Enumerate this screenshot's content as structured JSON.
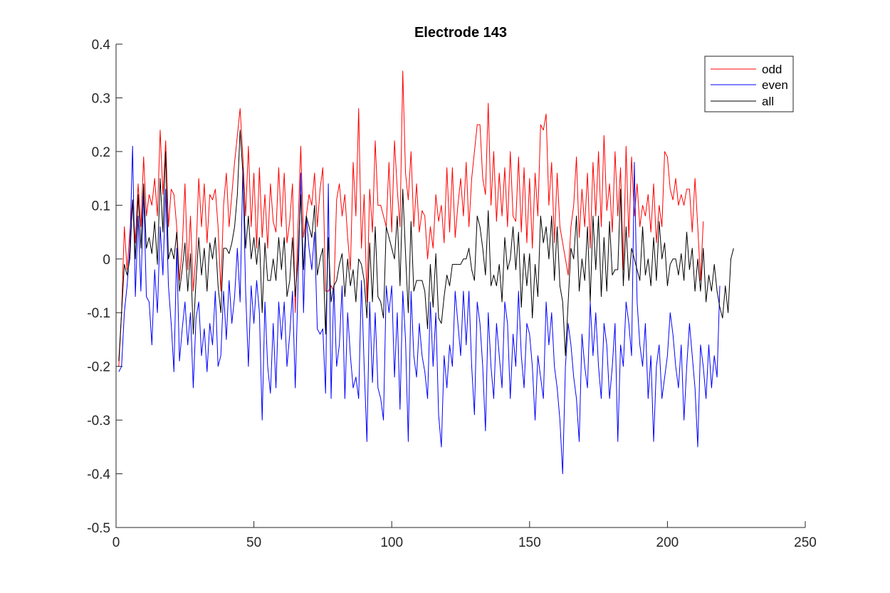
{
  "chart_data": {
    "type": "line",
    "title": "Electrode 143",
    "xlabel": "",
    "ylabel": "",
    "xlim": [
      0,
      250
    ],
    "ylim": [
      -0.5,
      0.4
    ],
    "xticks": [
      0,
      50,
      100,
      150,
      200,
      250
    ],
    "yticks": [
      -0.5,
      -0.4,
      -0.3,
      -0.2,
      -0.1,
      0,
      0.1,
      0.2,
      0.3,
      0.4
    ],
    "xtick_labels": [
      "0",
      "50",
      "100",
      "150",
      "200",
      "250"
    ],
    "ytick_labels": [
      "-0.5",
      "-0.4",
      "-0.3",
      "-0.2",
      "-0.1",
      "0",
      "0.1",
      "0.2",
      "0.3",
      "0.4"
    ],
    "grid": false,
    "legend_position": "top-right",
    "x_start": 1,
    "x_step": 1,
    "series": [
      {
        "name": "odd",
        "color": "#ff0000",
        "values": [
          -0.2,
          -0.1,
          0.06,
          -0.02,
          0.05,
          0.11,
          0.03,
          0.14,
          0.06,
          0.19,
          0.08,
          0.12,
          0.1,
          0.15,
          0.08,
          0.24,
          0.12,
          0.22,
          0.06,
          0.13,
          0.12,
          0.06,
          -0.04,
          0.02,
          0.14,
          -0.02,
          0.08,
          -0.06,
          0.01,
          0.15,
          0.06,
          0.14,
          0.03,
          0.12,
          0.11,
          0.13,
          0.06,
          -0.06,
          0.1,
          0.16,
          0.06,
          0.12,
          0.18,
          0.23,
          0.28,
          0.19,
          0.08,
          0.21,
          0.06,
          0.16,
          0.02,
          0.17,
          0.04,
          0.12,
          0.02,
          0.14,
          0.07,
          0.05,
          0.17,
          0.06,
          0.16,
          0.03,
          0.07,
          0.14,
          -0.1,
          0.06,
          0.21,
          0.04,
          0.08,
          0.12,
          0.1,
          0.16,
          0.06,
          0.13,
          0.17,
          -0.06,
          -0.06,
          -0.05,
          -0.06,
          0.11,
          0.14,
          0.08,
          0.12,
          0.04,
          -0.02,
          0.18,
          0.08,
          0.28,
          0.02,
          0.12,
          -0.08,
          0.13,
          0.05,
          0.22,
          0.1,
          0.1,
          0.08,
          0.06,
          0.18,
          0.05,
          0.22,
          0.13,
          0.06,
          0.35,
          0.16,
          0.11,
          0.2,
          0.06,
          0.14,
          0.05,
          0.09,
          0.08,
          0.0,
          0.06,
          0.02,
          0.12,
          0.07,
          0.1,
          0.03,
          0.17,
          0.05,
          0.17,
          0.04,
          0.1,
          0.15,
          0.08,
          0.18,
          0.06,
          0.15,
          0.2,
          0.25,
          0.25,
          0.15,
          0.12,
          0.29,
          0.1,
          0.2,
          0.07,
          0.16,
          0.08,
          0.17,
          0.06,
          0.2,
          0.08,
          0.07,
          0.19,
          0.05,
          0.17,
          0.03,
          0.15,
          0.02,
          0.16,
          0.08,
          0.25,
          0.24,
          0.27,
          0.1,
          0.18,
          0.03,
          0.16,
          0.06,
          0.03,
          0.0,
          -0.03,
          0.06,
          0.1,
          0.19,
          0.04,
          0.13,
          0.06,
          0.16,
          0.02,
          0.18,
          0.08,
          0.2,
          0.06,
          0.23,
          0.09,
          0.14,
          0.05,
          0.2,
          0.08,
          0.17,
          -0.02,
          0.21,
          0.04,
          0.19,
          0.08,
          0.14,
          0.06,
          0.1,
          0.08,
          0.12,
          0.05,
          0.14,
          0.03,
          0.1,
          0.06,
          0.2,
          0.19,
          0.13,
          0.11,
          0.15,
          0.1,
          0.12,
          0.1,
          0.13,
          0.13,
          0.05,
          0.15,
          0.06,
          -0.04,
          0.07
        ]
      },
      {
        "name": "even",
        "color": "#0000ff",
        "values": [
          -0.21,
          -0.2,
          -0.1,
          -0.05,
          0.02,
          0.21,
          -0.07,
          0.08,
          -0.06,
          0.13,
          -0.07,
          -0.08,
          -0.16,
          -0.02,
          -0.1,
          0.06,
          -0.03,
          0.13,
          -0.05,
          -0.12,
          -0.21,
          0.02,
          -0.19,
          -0.13,
          -0.08,
          -0.16,
          -0.1,
          -0.24,
          -0.11,
          -0.08,
          -0.18,
          -0.13,
          -0.21,
          -0.12,
          -0.16,
          -0.06,
          -0.2,
          -0.18,
          -0.06,
          -0.15,
          -0.04,
          -0.12,
          -0.07,
          0.02,
          -0.08,
          0.17,
          -0.06,
          -0.2,
          -0.05,
          -0.12,
          -0.04,
          -0.1,
          -0.3,
          -0.08,
          -0.2,
          -0.25,
          -0.12,
          -0.24,
          -0.08,
          -0.15,
          -0.08,
          -0.2,
          -0.14,
          -0.06,
          -0.24,
          -0.05,
          0.16,
          -0.1,
          0.08,
          0.02,
          -0.02,
          0.05,
          -0.13,
          -0.14,
          -0.13,
          -0.25,
          0.14,
          -0.26,
          -0.05,
          -0.2,
          -0.16,
          -0.05,
          -0.26,
          -0.1,
          -0.18,
          -0.24,
          -0.22,
          -0.26,
          -0.04,
          -0.2,
          -0.34,
          -0.08,
          -0.23,
          -0.1,
          -0.24,
          -0.26,
          -0.3,
          -0.05,
          -0.1,
          -0.05,
          -0.22,
          -0.1,
          -0.28,
          -0.06,
          -0.15,
          -0.34,
          -0.06,
          -0.18,
          -0.22,
          -0.12,
          -0.18,
          -0.21,
          -0.26,
          -0.08,
          -0.2,
          -0.1,
          -0.29,
          -0.35,
          -0.18,
          -0.24,
          -0.16,
          -0.2,
          -0.06,
          -0.12,
          -0.18,
          -0.06,
          -0.16,
          -0.06,
          -0.2,
          -0.29,
          -0.08,
          -0.12,
          -0.2,
          -0.32,
          -0.1,
          -0.2,
          -0.26,
          -0.12,
          -0.18,
          -0.24,
          -0.08,
          -0.12,
          -0.26,
          -0.14,
          -0.2,
          -0.06,
          -0.18,
          -0.24,
          -0.12,
          -0.14,
          -0.2,
          -0.3,
          -0.18,
          -0.22,
          -0.26,
          -0.08,
          -0.16,
          -0.1,
          -0.2,
          -0.24,
          -0.3,
          -0.4,
          -0.2,
          -0.12,
          -0.16,
          -0.22,
          -0.26,
          -0.34,
          -0.14,
          -0.2,
          -0.24,
          -0.08,
          -0.18,
          -0.1,
          -0.2,
          -0.26,
          -0.12,
          -0.16,
          -0.26,
          -0.2,
          -0.12,
          -0.34,
          -0.16,
          -0.2,
          -0.08,
          -0.12,
          -0.18,
          0.18,
          -0.08,
          -0.16,
          -0.2,
          -0.12,
          -0.26,
          -0.18,
          -0.34,
          -0.2,
          -0.16,
          -0.26,
          -0.22,
          -0.18,
          -0.1,
          -0.14,
          -0.2,
          -0.24,
          -0.16,
          -0.3,
          -0.2,
          -0.12,
          -0.18,
          -0.24,
          -0.35,
          -0.16,
          -0.2,
          -0.26,
          -0.16,
          -0.24,
          -0.18,
          -0.22,
          -0.05
        ]
      },
      {
        "name": "all",
        "color": "#000000",
        "values": [
          -0.19,
          -0.1,
          -0.01,
          -0.03,
          0.0,
          0.11,
          0.0,
          0.12,
          0.02,
          0.14,
          0.02,
          0.04,
          0.01,
          0.07,
          -0.01,
          0.15,
          0.05,
          0.2,
          0.0,
          0.02,
          0.0,
          0.05,
          -0.06,
          -0.02,
          0.03,
          -0.06,
          0.01,
          -0.14,
          -0.04,
          0.04,
          -0.03,
          0.02,
          -0.06,
          0.03,
          0.0,
          0.04,
          -0.05,
          -0.1,
          0.02,
          0.02,
          0.01,
          0.03,
          0.06,
          0.12,
          0.24,
          0.16,
          0.02,
          0.08,
          0.0,
          0.04,
          -0.01,
          0.04,
          -0.1,
          0.03,
          -0.04,
          -0.04,
          0.0,
          -0.04,
          0.04,
          -0.02,
          0.04,
          -0.07,
          -0.04,
          0.04,
          -0.07,
          0.0,
          0.12,
          -0.02,
          0.08,
          0.06,
          0.04,
          0.1,
          -0.03,
          0.0,
          0.02,
          -0.14,
          0.04,
          -0.08,
          -0.05,
          -0.04,
          -0.01,
          0.01,
          -0.07,
          0.0,
          -0.05,
          -0.02,
          -0.08,
          0.0,
          -0.01,
          -0.04,
          -0.11,
          0.03,
          -0.08,
          0.06,
          -0.07,
          -0.08,
          -0.11,
          0.06,
          0.04,
          0.02,
          0.0,
          0.08,
          -0.05,
          0.13,
          0.01,
          -0.1,
          0.07,
          -0.06,
          -0.04,
          -0.04,
          -0.04,
          -0.06,
          -0.13,
          -0.01,
          -0.09,
          0.01,
          -0.11,
          -0.12,
          -0.07,
          -0.03,
          -0.05,
          -0.01,
          -0.01,
          -0.01,
          -0.01,
          0.0,
          0.0,
          0.02,
          -0.02,
          -0.04,
          0.08,
          0.06,
          0.02,
          -0.03,
          0.09,
          -0.05,
          -0.03,
          -0.05,
          -0.01,
          -0.08,
          0.04,
          -0.02,
          0.0,
          0.06,
          -0.02,
          0.05,
          -0.09,
          0.01,
          -0.05,
          0.01,
          -0.11,
          -0.01,
          -0.07,
          0.08,
          0.03,
          0.06,
          0.0,
          0.08,
          -0.04,
          0.06,
          -0.05,
          -0.08,
          -0.18,
          -0.08,
          0.02,
          0.0,
          0.08,
          -0.06,
          0.0,
          -0.04,
          0.06,
          -0.08,
          0.08,
          -0.02,
          0.08,
          -0.07,
          0.04,
          -0.06,
          0.07,
          -0.03,
          -0.02,
          -0.02,
          0.13,
          -0.05,
          0.06,
          -0.04,
          0.02,
          0.0,
          -0.02,
          -0.04,
          0.06,
          -0.03,
          0.0,
          -0.05,
          0.04,
          -0.04,
          0.07,
          0.0,
          0.03,
          -0.05,
          -0.01,
          0.0,
          0.0,
          -0.03,
          0.01,
          -0.04,
          0.05,
          -0.02,
          0.02,
          -0.06,
          0.0,
          -0.06,
          0.02,
          -0.08,
          -0.03,
          -0.06,
          -0.01,
          -0.06,
          -0.09,
          -0.11,
          -0.05,
          -0.1,
          0.0,
          0.02
        ]
      }
    ]
  }
}
